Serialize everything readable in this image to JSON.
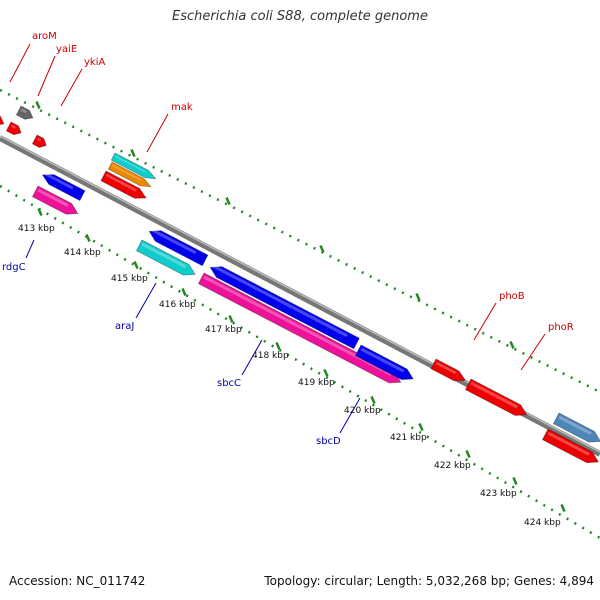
{
  "title": "Escherichia coli S88, complete genome",
  "footer": {
    "accession": "Accession: NC_011742",
    "summary": "Topology: circular; Length: 5,032,268 bp; Genes: 4,894"
  },
  "colors": {
    "backbone": "#888888",
    "ticks": "#228822",
    "forward_label": "#cc0000",
    "reverse_label": "#0000aa",
    "red": "#ee0000",
    "gray": "#666666",
    "cyan": "#11cccc",
    "orange": "#ee8800",
    "blue": "#0000ee",
    "magenta": "#ee1199",
    "steelblue": "#4d86b8"
  },
  "scale_labels": [
    "413 kbp",
    "414 kbp",
    "415 kbp",
    "416 kbp",
    "417 kbp",
    "418 kbp",
    "419 kbp",
    "420 kbp",
    "421 kbp",
    "422 kbp",
    "423 kbp",
    "424 kbp"
  ],
  "forward_genes": [
    "aroM",
    "yaiE",
    "ykiA",
    "mak",
    "phoB",
    "phoR"
  ],
  "reverse_genes": [
    "rdgC",
    "araJ",
    "sbcC",
    "sbcD"
  ]
}
